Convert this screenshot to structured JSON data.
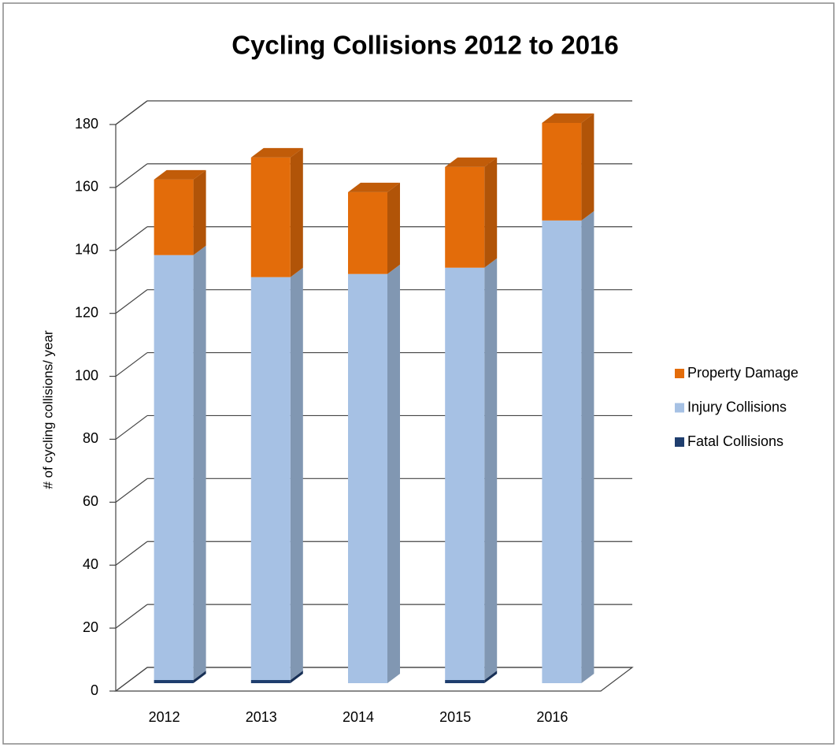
{
  "chart_data": {
    "type": "bar3d",
    "title": "Cycling Collisions 2012 to 2016",
    "y_label": "# of cycling collisions/ year",
    "categories": [
      "2012",
      "2013",
      "2014",
      "2015",
      "2016"
    ],
    "series": [
      {
        "name": "Fatal Collisions",
        "color": "#1f3e6e",
        "values": [
          1,
          1,
          0,
          1,
          0
        ]
      },
      {
        "name": "Injury Collisions",
        "color": "#a6c1e4",
        "values": [
          135,
          128,
          130,
          131,
          147
        ]
      },
      {
        "name": "Property Damage",
        "color": "#e36c0a",
        "values": [
          24,
          38,
          26,
          32,
          31
        ]
      }
    ],
    "stacked": true,
    "ylim": [
      0,
      180
    ],
    "yticks": [
      0,
      20,
      40,
      60,
      80,
      100,
      120,
      140,
      160,
      180
    ],
    "grid": true,
    "legend": "right"
  }
}
